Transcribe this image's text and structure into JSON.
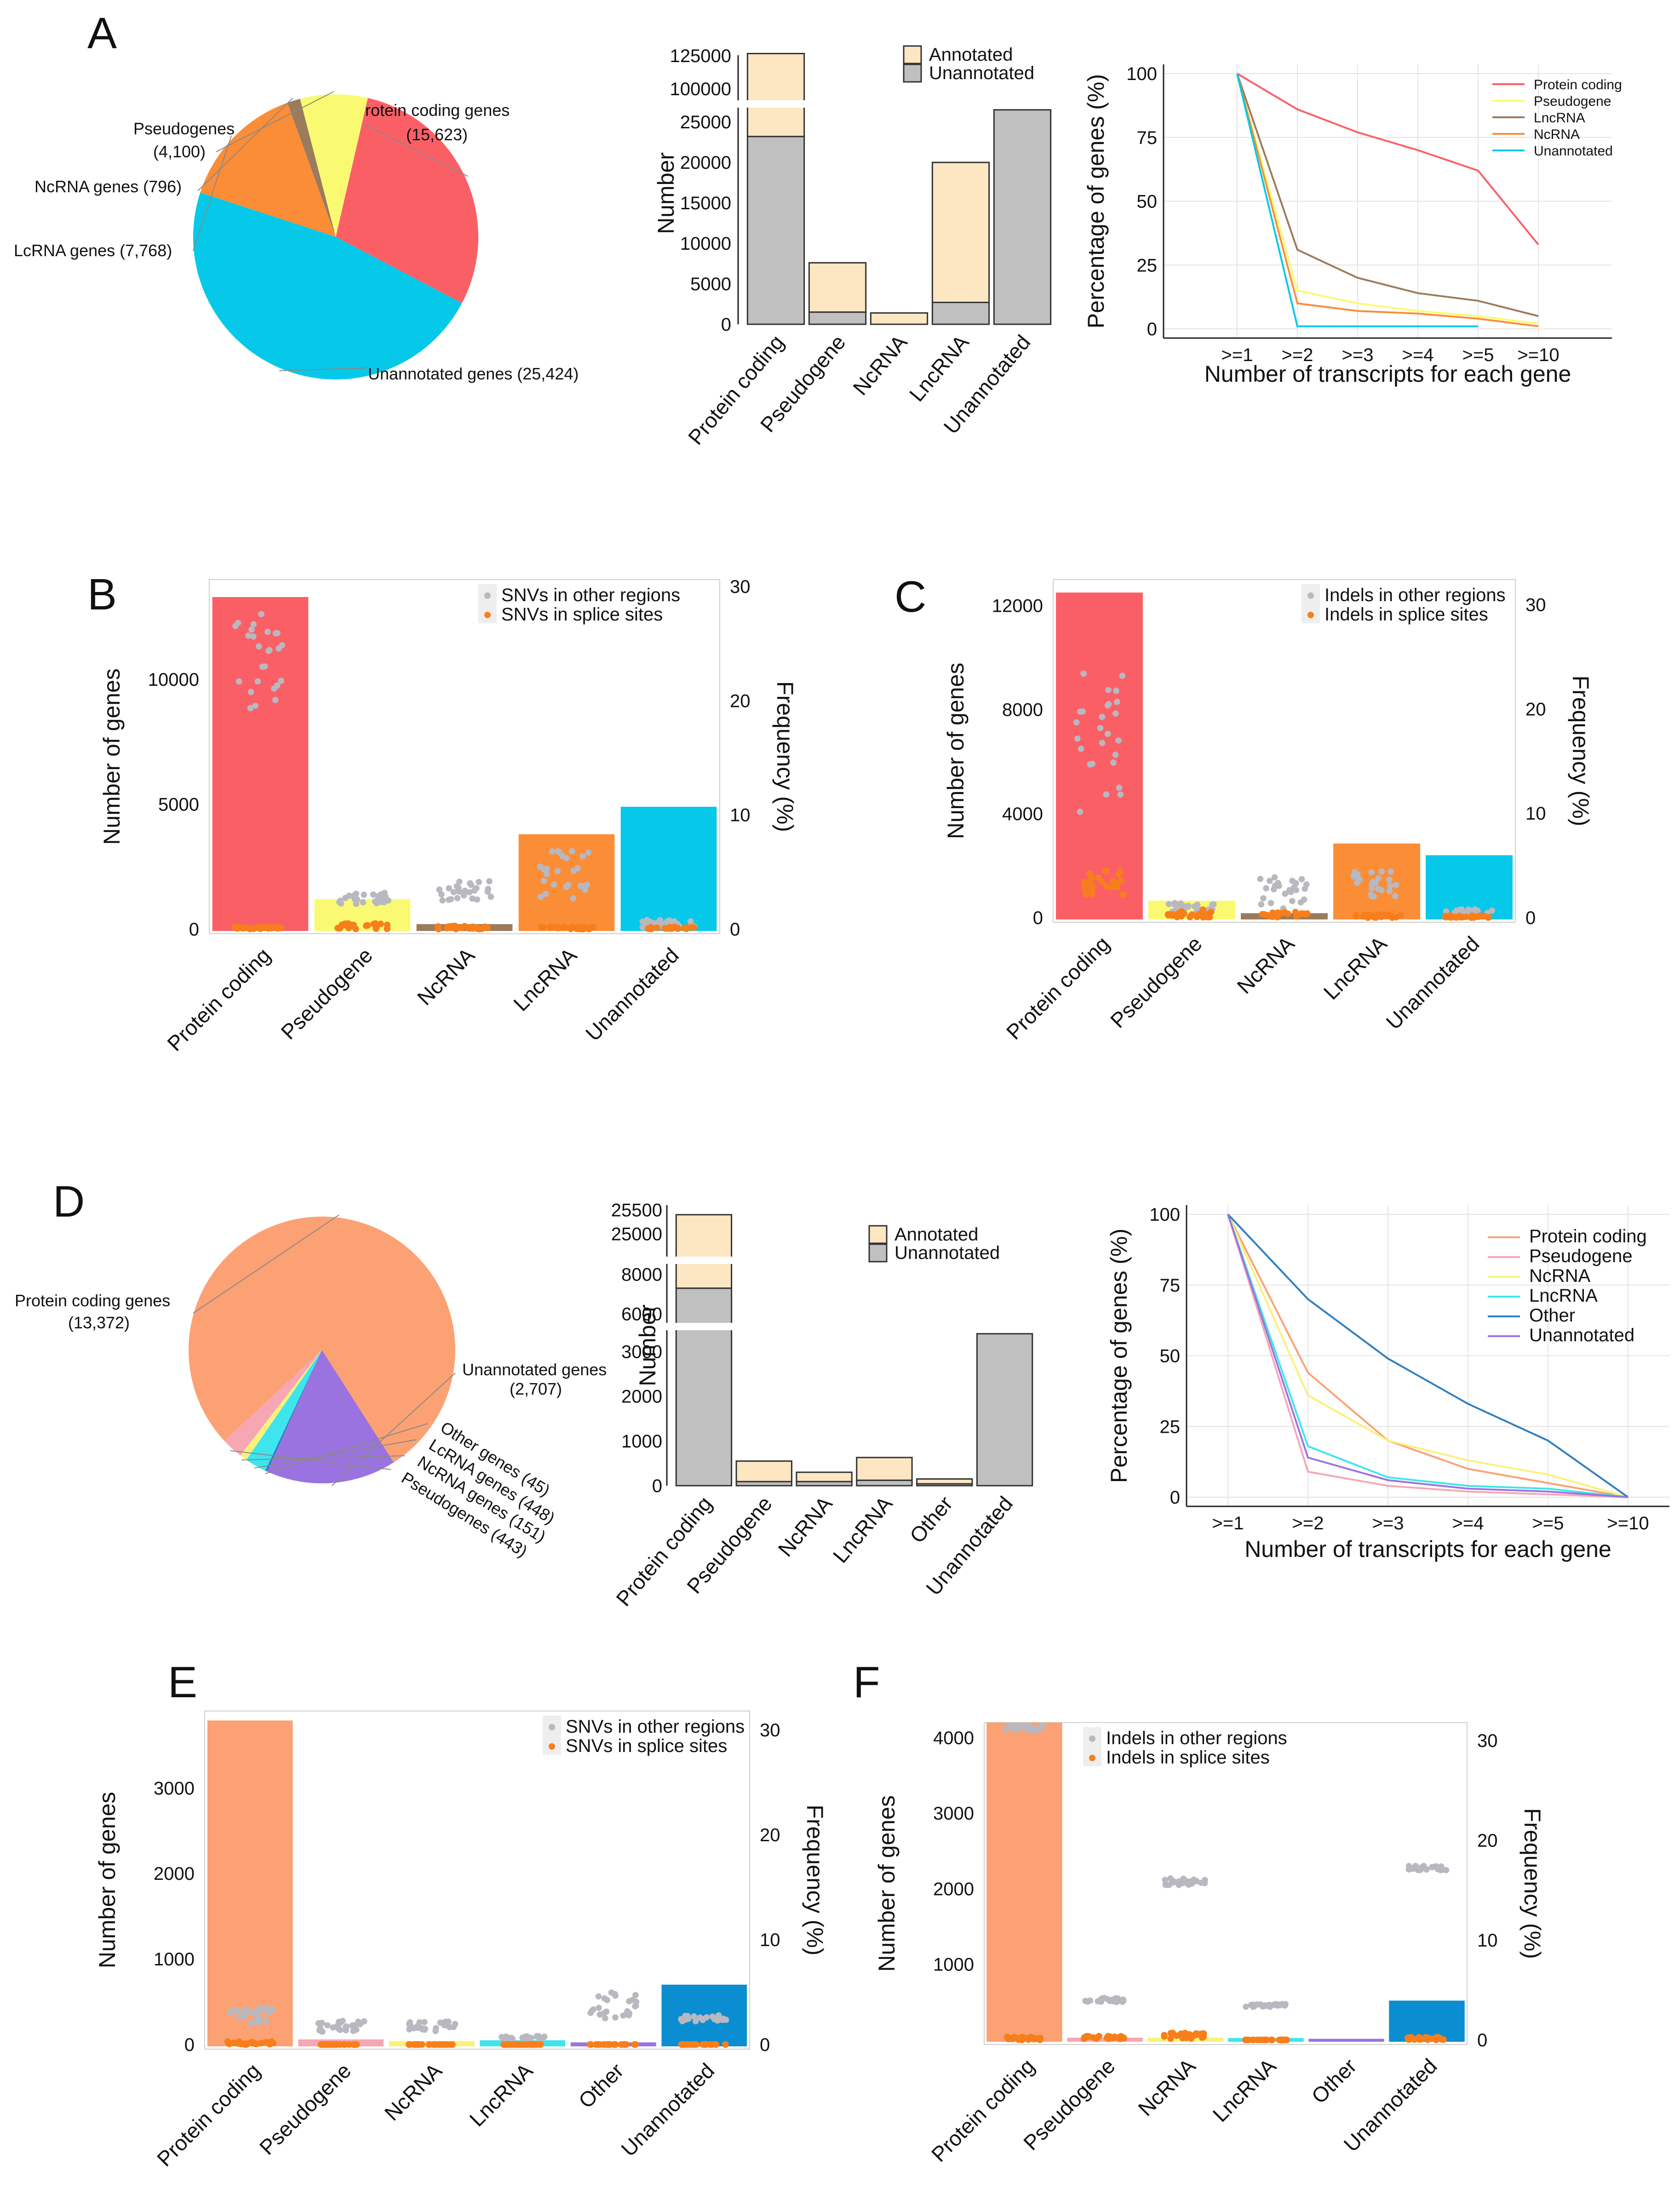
{
  "colors": {
    "protein": "#fb5f66",
    "pseudo": "#fafa72",
    "ncrna": "#9b7b5c",
    "lncrna": "#fb8d37",
    "unann": "#06c8e9",
    "annotated": "#fde6c2",
    "unannotated": "#c0c0c0",
    "d_protein": "#fca174",
    "d_pseudo": "#f6a7b3",
    "d_ncrna": "#f8f27a",
    "d_lncrna": "#3ee5ec",
    "d_other": "#2f7fc0",
    "d_unann": "#9b73e0",
    "d_unann_bar": "#0b8ed1",
    "dot_other": "#b8b8c0",
    "dot_splice": "#f77f1b"
  },
  "panels": {
    "A": {
      "letter": "A"
    },
    "B": {
      "letter": "B"
    },
    "C": {
      "letter": "C"
    },
    "D": {
      "letter": "D"
    },
    "E": {
      "letter": "E"
    },
    "F": {
      "letter": "F"
    }
  },
  "chart_data": [
    {
      "id": "A_pie",
      "type": "pie",
      "slices": [
        {
          "name": "Protein coding genes",
          "count": "(15,623)",
          "value": 15623,
          "color_key": "protein"
        },
        {
          "name": "Unannotated genes (25,424)",
          "count": "",
          "value": 25424,
          "color_key": "unann"
        },
        {
          "name": "LcRNA genes (7,768)",
          "count": "",
          "value": 7768,
          "color_key": "lncrna"
        },
        {
          "name": "NcRNA genes (796)",
          "count": "",
          "value": 796,
          "color_key": "ncrna"
        },
        {
          "name": "Pseudogenes",
          "count": "(4,100)",
          "value": 4100,
          "color_key": "pseudo"
        }
      ]
    },
    {
      "id": "A_bar",
      "type": "bar",
      "ylabel": "Number",
      "yticks_lower": [
        "0",
        "5000",
        "10000",
        "15000",
        "20000",
        "25000"
      ],
      "yticks_upper": [
        "100000",
        "125000"
      ],
      "categories": [
        "Protein coding",
        "Pseudogene",
        "NcRNA",
        "LncRNA",
        "Unannotated"
      ],
      "series": [
        {
          "name": "Unannotated",
          "values": [
            23200,
            1500,
            0,
            2700,
            26500
          ]
        },
        {
          "name": "Annotated",
          "values": [
            103300,
            6100,
            1400,
            17300,
            0
          ]
        }
      ],
      "legend": [
        "Annotated",
        "Unannotated"
      ]
    },
    {
      "id": "A_line",
      "type": "line",
      "xlabel": "Number of transcripts for each gene",
      "ylabel": "Percentage of genes (%)",
      "x": [
        ">=1",
        ">=2",
        ">=3",
        ">=4",
        ">=5",
        ">=10"
      ],
      "yticks": [
        "0",
        "25",
        "50",
        "75",
        "100"
      ],
      "ylim": [
        0,
        100
      ],
      "series": [
        {
          "name": "Protein coding",
          "color_key": "protein",
          "values": [
            100,
            86,
            77,
            70,
            62,
            33
          ]
        },
        {
          "name": "Pseudogene",
          "color_key": "pseudo",
          "values": [
            100,
            15,
            10,
            7,
            5,
            2
          ]
        },
        {
          "name": "LncRNA",
          "color_key": "ncrna",
          "values": [
            100,
            31,
            20,
            14,
            11,
            5
          ]
        },
        {
          "name": "NcRNA",
          "color_key": "lncrna",
          "values": [
            100,
            10,
            7,
            6,
            4,
            1
          ]
        },
        {
          "name": "Unannotated",
          "color_key": "unann",
          "values": [
            100,
            1,
            1,
            1,
            1,
            null
          ]
        }
      ]
    },
    {
      "id": "B",
      "type": "bar",
      "ylabel": "Number of genes",
      "y2label": "Frequency (%)",
      "yticks": [
        "0",
        "5000",
        "10000"
      ],
      "y2ticks": [
        "0",
        "10",
        "20",
        "30"
      ],
      "ylim": [
        0,
        14000
      ],
      "y2lim": [
        0,
        30.6
      ],
      "categories": [
        "Protein coding",
        "Pseudogene",
        "NcRNA",
        "LncRNA",
        "Unannotated"
      ],
      "values": [
        13300,
        1200,
        200,
        3800,
        4900
      ],
      "color_keys": [
        "protein",
        "pseudo",
        "ncrna",
        "lncrna",
        "unann"
      ],
      "legend": [
        "SNVs in other regions",
        "SNVs in splice sites"
      ],
      "dots_other": [
        [
          19,
          28
        ],
        [
          2.2,
          3.2
        ],
        [
          2.5,
          4.2
        ],
        [
          2.5,
          7.0
        ],
        [
          0.1,
          0.8
        ]
      ],
      "dots_splice": [
        [
          0,
          0.2
        ],
        [
          0,
          0.5
        ],
        [
          0,
          0.3
        ],
        [
          0,
          0.2
        ],
        [
          0,
          0.2
        ]
      ]
    },
    {
      "id": "C",
      "type": "bar",
      "ylabel": "Number of genes",
      "y2label": "Frequency (%)",
      "yticks": [
        "0",
        "4000",
        "8000",
        "12000"
      ],
      "y2ticks": [
        "0",
        "10",
        "20",
        "30"
      ],
      "ylim": [
        0,
        13000
      ],
      "y2lim": [
        0,
        32.4
      ],
      "categories": [
        "Protein coding",
        "Pseudogene",
        "NcRNA",
        "LncRNA",
        "Unannotated"
      ],
      "values": [
        12500,
        650,
        170,
        2850,
        2400
      ],
      "color_keys": [
        "protein",
        "pseudo",
        "ncrna",
        "lncrna",
        "unann"
      ],
      "legend": [
        "Indels in other regions",
        "Indels in splice sites"
      ],
      "dots_other": [
        [
          10,
          24
        ],
        [
          0.5,
          1.5
        ],
        [
          0.8,
          4
        ],
        [
          2,
          4.5
        ],
        [
          0.3,
          0.8
        ]
      ],
      "dots_splice": [
        [
          2,
          4.5
        ],
        [
          0,
          0.8
        ],
        [
          0,
          0.6
        ],
        [
          0,
          0.3
        ],
        [
          0,
          0.2
        ]
      ]
    },
    {
      "id": "D_pie",
      "type": "pie",
      "slices": [
        {
          "name": "Protein coding genes",
          "count": "(13,372)",
          "value": 13372,
          "color_key": "d_protein"
        },
        {
          "name": "Unannotated genes",
          "count": "(2,707)",
          "value": 2707,
          "color_key": "d_unann"
        },
        {
          "name": "Other genes (45)",
          "count": "",
          "value": 45,
          "color_key": "d_other"
        },
        {
          "name": "LcRNA genes (448)",
          "count": "",
          "value": 448,
          "color_key": "d_lncrna"
        },
        {
          "name": "NcRNA genes (151)",
          "count": "",
          "value": 151,
          "color_key": "d_ncrna"
        },
        {
          "name": "Pseudogenes (443)",
          "count": "",
          "value": 443,
          "color_key": "d_pseudo"
        }
      ]
    },
    {
      "id": "D_bar",
      "type": "bar",
      "ylabel": "Number",
      "yticks_lower": [
        "0",
        "1000",
        "2000",
        "3000"
      ],
      "yticks_mid": [
        "6000",
        "8000"
      ],
      "yticks_upper": [
        "25000",
        "25500"
      ],
      "categories": [
        "Protein coding",
        "Pseudogene",
        "NcRNA",
        "LncRNA",
        "Other",
        "Unannotated"
      ],
      "series": [
        {
          "name": "Unannotated",
          "values": [
            7300,
            90,
            90,
            120,
            40,
            3400
          ]
        },
        {
          "name": "Annotated",
          "values": [
            18100,
            460,
            210,
            510,
            110,
            0
          ]
        }
      ],
      "legend": [
        "Annotated",
        "Unannotated"
      ]
    },
    {
      "id": "D_line",
      "type": "line",
      "xlabel": "Number of transcripts for each gene",
      "ylabel": "Percentage of genes (%)",
      "x": [
        ">=1",
        ">=2",
        ">=3",
        ">=4",
        ">=5",
        ">=10"
      ],
      "yticks": [
        "0",
        "25",
        "50",
        "75",
        "100"
      ],
      "ylim": [
        0,
        100
      ],
      "series": [
        {
          "name": "Protein coding",
          "color_key": "d_protein",
          "values": [
            100,
            44,
            20,
            10,
            5,
            0
          ]
        },
        {
          "name": "Pseudogene",
          "color_key": "d_pseudo",
          "values": [
            100,
            9,
            4,
            2,
            1,
            0
          ]
        },
        {
          "name": "NcRNA",
          "color_key": "d_ncrna",
          "values": [
            100,
            36,
            20,
            13,
            8,
            0
          ]
        },
        {
          "name": "LncRNA",
          "color_key": "d_lncrna",
          "values": [
            100,
            18,
            7,
            4,
            3,
            0
          ]
        },
        {
          "name": "Other",
          "color_key": "d_other",
          "values": [
            100,
            70,
            49,
            33,
            20,
            0
          ]
        },
        {
          "name": "Unannotated",
          "color_key": "d_unann",
          "values": [
            100,
            14,
            6,
            3,
            2,
            0
          ]
        }
      ]
    },
    {
      "id": "E",
      "type": "bar",
      "ylabel": "Number of genes",
      "y2label": "Frequency (%)",
      "yticks": [
        "0",
        "1000",
        "2000",
        "3000"
      ],
      "y2ticks": [
        "0",
        "10",
        "20",
        "30"
      ],
      "ylim": [
        0,
        3900
      ],
      "y2lim": [
        0,
        31.8
      ],
      "categories": [
        "Protein coding",
        "Pseudogene",
        "NcRNA",
        "LncRNA",
        "Other",
        "Unannotated"
      ],
      "values": [
        3790,
        60,
        40,
        50,
        25,
        700
      ],
      "color_keys": [
        "d_protein",
        "d_pseudo",
        "d_ncrna",
        "d_lncrna",
        "d_unann",
        "d_unann_bar"
      ],
      "legend": [
        "SNVs in other regions",
        "SNVs in splice sites"
      ],
      "dots_other": [
        [
          2,
          3.5
        ],
        [
          1.2,
          2.4
        ],
        [
          1.2,
          2.2
        ],
        [
          0.5,
          0.8
        ],
        [
          2.5,
          5
        ],
        [
          2.2,
          2.8
        ]
      ],
      "dots_splice": [
        [
          0,
          0.3
        ],
        [
          0,
          0
        ],
        [
          0,
          0
        ],
        [
          0,
          0
        ],
        [
          0,
          0
        ],
        [
          0,
          0
        ]
      ]
    },
    {
      "id": "F",
      "type": "bar",
      "ylabel": "Number of genes",
      "y2label": "Frequency (%)",
      "yticks": [
        "1000",
        "2000",
        "3000",
        "4000"
      ],
      "y2ticks": [
        "0",
        "10",
        "20",
        "30"
      ],
      "ylim": [
        0,
        4200
      ],
      "y2lim": [
        0,
        31.8
      ],
      "categories": [
        "Protein coding",
        "Pseudogene",
        "NcRNA",
        "LncRNA",
        "Other",
        "Unannotated"
      ],
      "values": [
        4200,
        30,
        30,
        25,
        15,
        520
      ],
      "color_keys": [
        "d_protein",
        "d_pseudo",
        "d_ncrna",
        "d_lncrna",
        "d_unann",
        "d_unann_bar"
      ],
      "legend": [
        "Indels in other regions",
        "Indels in splice sites"
      ],
      "dots_other": [
        [
          31,
          31.5
        ],
        [
          3.8,
          4.2
        ],
        [
          15.5,
          16.2
        ],
        [
          3.3,
          3.6
        ],
        null,
        [
          17,
          17.5
        ]
      ],
      "dots_splice": [
        [
          0,
          0.3
        ],
        [
          0.1,
          0.4
        ],
        [
          0.1,
          0.7
        ],
        [
          0,
          0
        ],
        null,
        [
          0,
          0.3
        ]
      ]
    }
  ]
}
